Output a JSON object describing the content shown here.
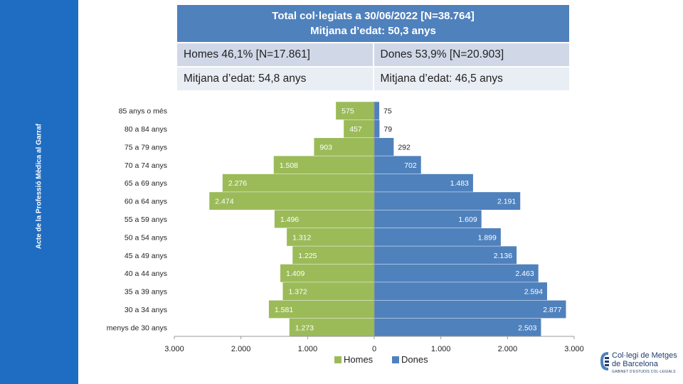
{
  "sidebar": {
    "text": "Acte de la Professió Mèdica al Garraf"
  },
  "summary": {
    "title_line1": "Total col·legiats a 30/06/2022 [N=38.764]",
    "title_line2": "Mitjana d’edat: 50,3 anys",
    "men_total": "Homes 46,1% [N=17.861]",
    "women_total": "Dones 53,9% [N=20.903]",
    "men_age": "Mitjana d’edat: 54,8 anys",
    "women_age": "Mitjana d’edat: 46,5 anys"
  },
  "colors": {
    "men": "#9bbb59",
    "women": "#4f81bd",
    "sidebar": "#1f6dc2",
    "header": "#4f81bd"
  },
  "chart_data": {
    "type": "bar",
    "orientation": "horizontal",
    "subtype": "population-pyramid",
    "categories": [
      "85 anys o més",
      "80 a 84 anys",
      "75 a 79 anys",
      "70 a 74 anys",
      "65 a 69 anys",
      "60 a 64 anys",
      "55 a 59 anys",
      "50 a 54 anys",
      "45 a 49 anys",
      "40 a 44 anys",
      "35 a 39 anys",
      "30 a 34 anys",
      "menys de 30 anys"
    ],
    "series": [
      {
        "name": "Homes",
        "values": [
          575,
          457,
          903,
          1508,
          2276,
          2474,
          1496,
          1312,
          1225,
          1409,
          1372,
          1581,
          1273
        ],
        "labels": [
          "575",
          "457",
          "903",
          "1.508",
          "2.276",
          "2.474",
          "1.496",
          "1.312",
          "1.225",
          "1.409",
          "1.372",
          "1.581",
          "1.273"
        ]
      },
      {
        "name": "Dones",
        "values": [
          75,
          79,
          292,
          702,
          1483,
          2191,
          1609,
          1899,
          2136,
          2463,
          2594,
          2877,
          2503
        ],
        "labels": [
          "75",
          "79",
          "292",
          "702",
          "1.483",
          "2.191",
          "1.609",
          "1.899",
          "2.136",
          "2.463",
          "2.594",
          "2.877",
          "2.503"
        ]
      }
    ],
    "xlim": [
      -3000,
      3000
    ],
    "xticks": [
      -3000,
      -2000,
      -1000,
      0,
      1000,
      2000,
      3000
    ],
    "xtick_labels": [
      "3.000",
      "2.000",
      "1.000",
      "0",
      "1.000",
      "2.000",
      "3.000"
    ],
    "legend": {
      "position": "bottom",
      "items": [
        "Homes",
        "Dones"
      ]
    },
    "grid": false
  },
  "logo": {
    "line1": "Col·legi de Metges",
    "line2": "de Barcelona",
    "line3": "GABINET D’ESTUDIS COL·LEGIALS"
  }
}
